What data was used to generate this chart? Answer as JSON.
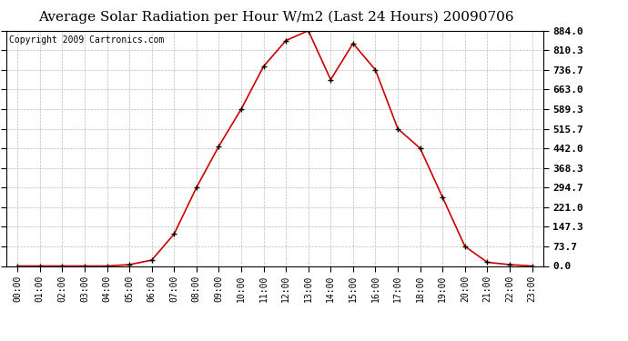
{
  "title": "Average Solar Radiation per Hour W/m2 (Last 24 Hours) 20090706",
  "copyright": "Copyright 2009 Cartronics.com",
  "hours": [
    "00:00",
    "01:00",
    "02:00",
    "03:00",
    "04:00",
    "05:00",
    "06:00",
    "07:00",
    "08:00",
    "09:00",
    "10:00",
    "11:00",
    "12:00",
    "13:00",
    "14:00",
    "15:00",
    "16:00",
    "17:00",
    "18:00",
    "19:00",
    "20:00",
    "21:00",
    "22:00",
    "23:00"
  ],
  "values": [
    0.0,
    0.0,
    0.0,
    0.0,
    0.0,
    5.0,
    22.0,
    120.0,
    294.7,
    450.0,
    589.3,
    750.0,
    847.0,
    884.0,
    700.0,
    836.0,
    736.7,
    515.7,
    442.0,
    258.0,
    73.7,
    14.0,
    5.0,
    0.0
  ],
  "line_color": "#cc0000",
  "marker": "+",
  "marker_color": "#000000",
  "background_color": "#ffffff",
  "grid_color": "#bbbbbb",
  "ytick_labels": [
    "0.0",
    "73.7",
    "147.3",
    "221.0",
    "294.7",
    "368.3",
    "442.0",
    "515.7",
    "589.3",
    "663.0",
    "736.7",
    "810.3",
    "884.0"
  ],
  "ytick_values": [
    0.0,
    73.7,
    147.3,
    221.0,
    294.7,
    368.3,
    442.0,
    515.7,
    589.3,
    663.0,
    736.7,
    810.3,
    884.0
  ],
  "ymax": 884.0,
  "ymin": 0.0,
  "title_fontsize": 11,
  "copyright_fontsize": 7,
  "xtick_fontsize": 7,
  "ytick_fontsize": 8
}
